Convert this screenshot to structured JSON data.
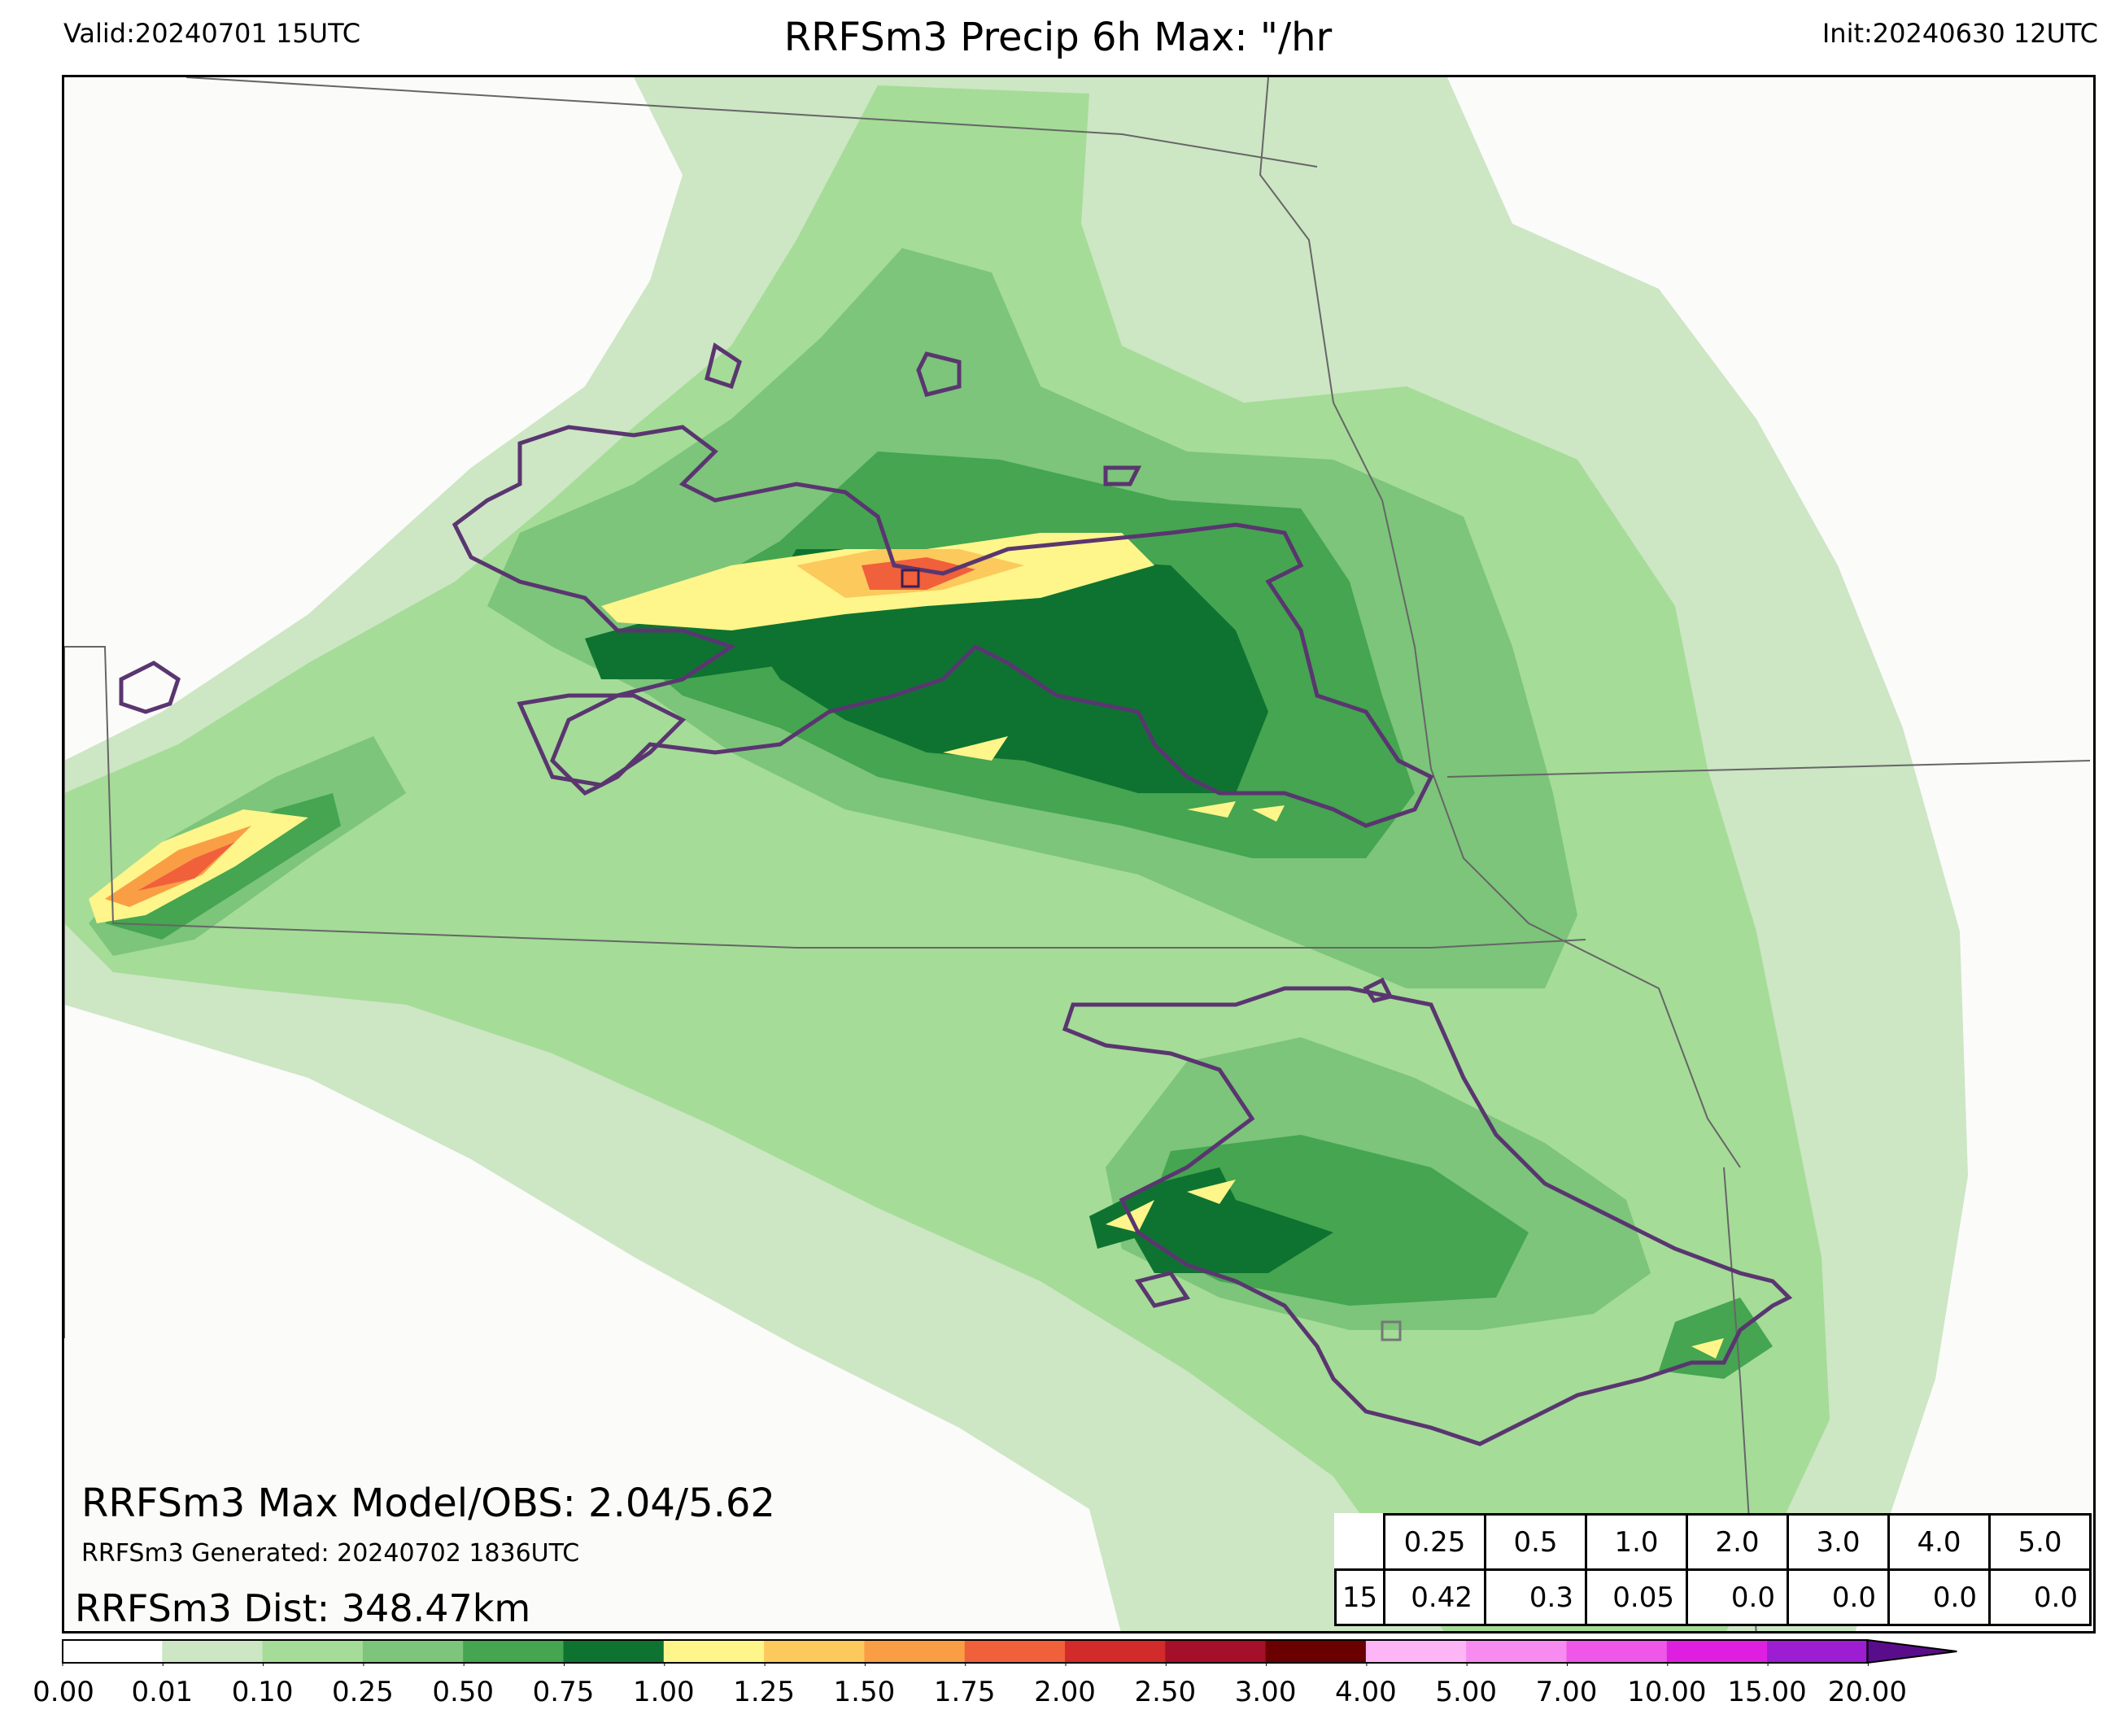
{
  "header": {
    "valid": "Valid:20240701 15UTC",
    "title": "RRFSm3 Precip 6h Max: \"/hr",
    "init": "Init:20240630 12UTC"
  },
  "stats": {
    "max_model_obs": "RRFSm3 Max Model/OBS: 2.04/5.62",
    "generated": "RRFSm3 Generated: 20240702 1836UTC",
    "dist": "RRFSm3 Dist: 348.47km"
  },
  "score_table": {
    "thresholds": [
      "0.25",
      "0.5",
      "1.0",
      "2.0",
      "3.0",
      "4.0",
      "5.0"
    ],
    "row_label": "15",
    "values": [
      "0.42",
      "0.3",
      "0.05",
      "0.0",
      "0.0",
      "0.0",
      "0.0"
    ]
  },
  "colorbar": {
    "labels": [
      "0.00",
      "0.01",
      "0.10",
      "0.25",
      "0.50",
      "0.75",
      "1.00",
      "1.25",
      "1.50",
      "1.75",
      "2.00",
      "2.50",
      "3.00",
      "4.00",
      "5.00",
      "7.00",
      "10.00",
      "15.00",
      "20.00"
    ],
    "colors": [
      "#ffffff",
      "#cde6c4",
      "#a5dc98",
      "#7cc57a",
      "#45a550",
      "#0e7331",
      "#fef58b",
      "#fcc95c",
      "#fa9e45",
      "#f0603b",
      "#d32a2a",
      "#a50f29",
      "#6b0000",
      "#fdb5f5",
      "#f88bf0",
      "#ef57e8",
      "#df1fe0",
      "#9d1dd2"
    ],
    "extend_color": "#5a0d8a"
  },
  "map": {
    "colors": {
      "lightest": "#cde6c4",
      "light": "#a5dc98",
      "medium": "#7cc57a",
      "mid": "#45a550",
      "dark": "#0e7331",
      "yellow": "#fef58b",
      "orange": "#fcc95c",
      "orange2": "#fa9e45",
      "red": "#f0603b",
      "obs_contour": "#5a3670",
      "border": "#666666"
    }
  }
}
